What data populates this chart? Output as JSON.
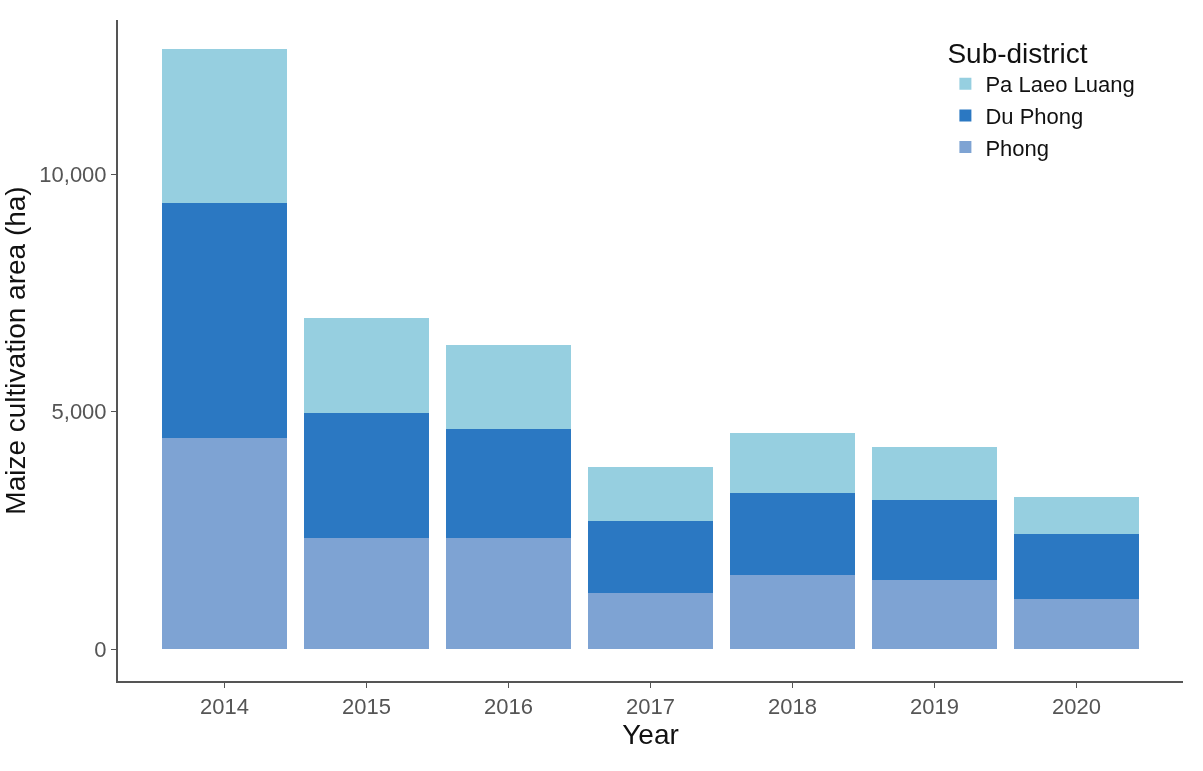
{
  "chart_data": {
    "type": "bar",
    "stacked": true,
    "xlabel": "Year",
    "ylabel": "Maize cultivation area (ha)",
    "legend_title": "Sub-district",
    "legend": "top right",
    "categories": [
      "2014",
      "2015",
      "2016",
      "2017",
      "2018",
      "2019",
      "2020"
    ],
    "ylim": [
      -670,
      13250
    ],
    "yticks": [
      {
        "value": 0,
        "label": "0"
      },
      {
        "value": 5000,
        "label": "5,000"
      },
      {
        "value": 10000,
        "label": "10,000"
      }
    ],
    "series": [
      {
        "name": "Phong",
        "color": "#7ea3d3",
        "values": [
          4440,
          2350,
          2350,
          1190,
          1570,
          1450,
          1060
        ]
      },
      {
        "name": "Du Phong",
        "color": "#2b78c2",
        "values": [
          4960,
          2630,
          2290,
          1510,
          1710,
          1690,
          1360
        ]
      },
      {
        "name": "Pa Laeo Luang",
        "color": "#96cfe0",
        "values": [
          3240,
          1990,
          1760,
          1140,
          1280,
          1110,
          790
        ]
      }
    ]
  }
}
